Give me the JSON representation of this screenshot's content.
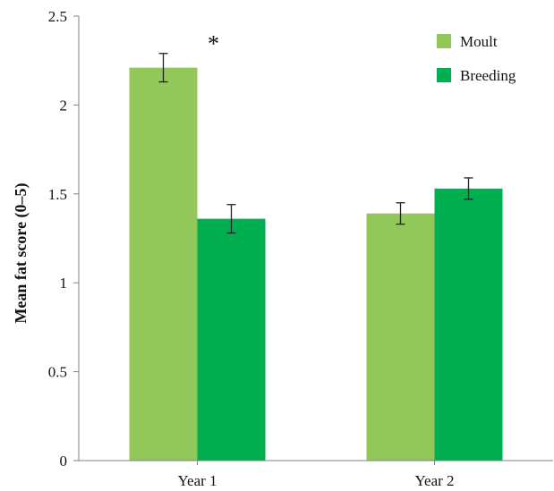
{
  "chart_data": {
    "type": "bar",
    "title": "",
    "xlabel": "",
    "ylabel": "Mean fat score (0–5)",
    "ylim": [
      0,
      2.5
    ],
    "yticks": [
      0,
      0.5,
      1,
      1.5,
      2,
      2.5
    ],
    "ytick_labels": [
      "0",
      "0.5",
      "1",
      "1.5",
      "2",
      "2.5"
    ],
    "categories": [
      "Year 1",
      "Year 2"
    ],
    "series": [
      {
        "name": "Moult",
        "color": "#92c75a",
        "values": [
          2.21,
          1.39
        ],
        "errors": [
          0.08,
          0.06
        ]
      },
      {
        "name": "Breeding",
        "color": "#00b050",
        "values": [
          1.36,
          1.53
        ],
        "errors": [
          0.08,
          0.06
        ]
      }
    ],
    "annotations": [
      {
        "text": "*",
        "category": "Year 1"
      }
    ],
    "grid": false,
    "legend_position": "top-right"
  }
}
